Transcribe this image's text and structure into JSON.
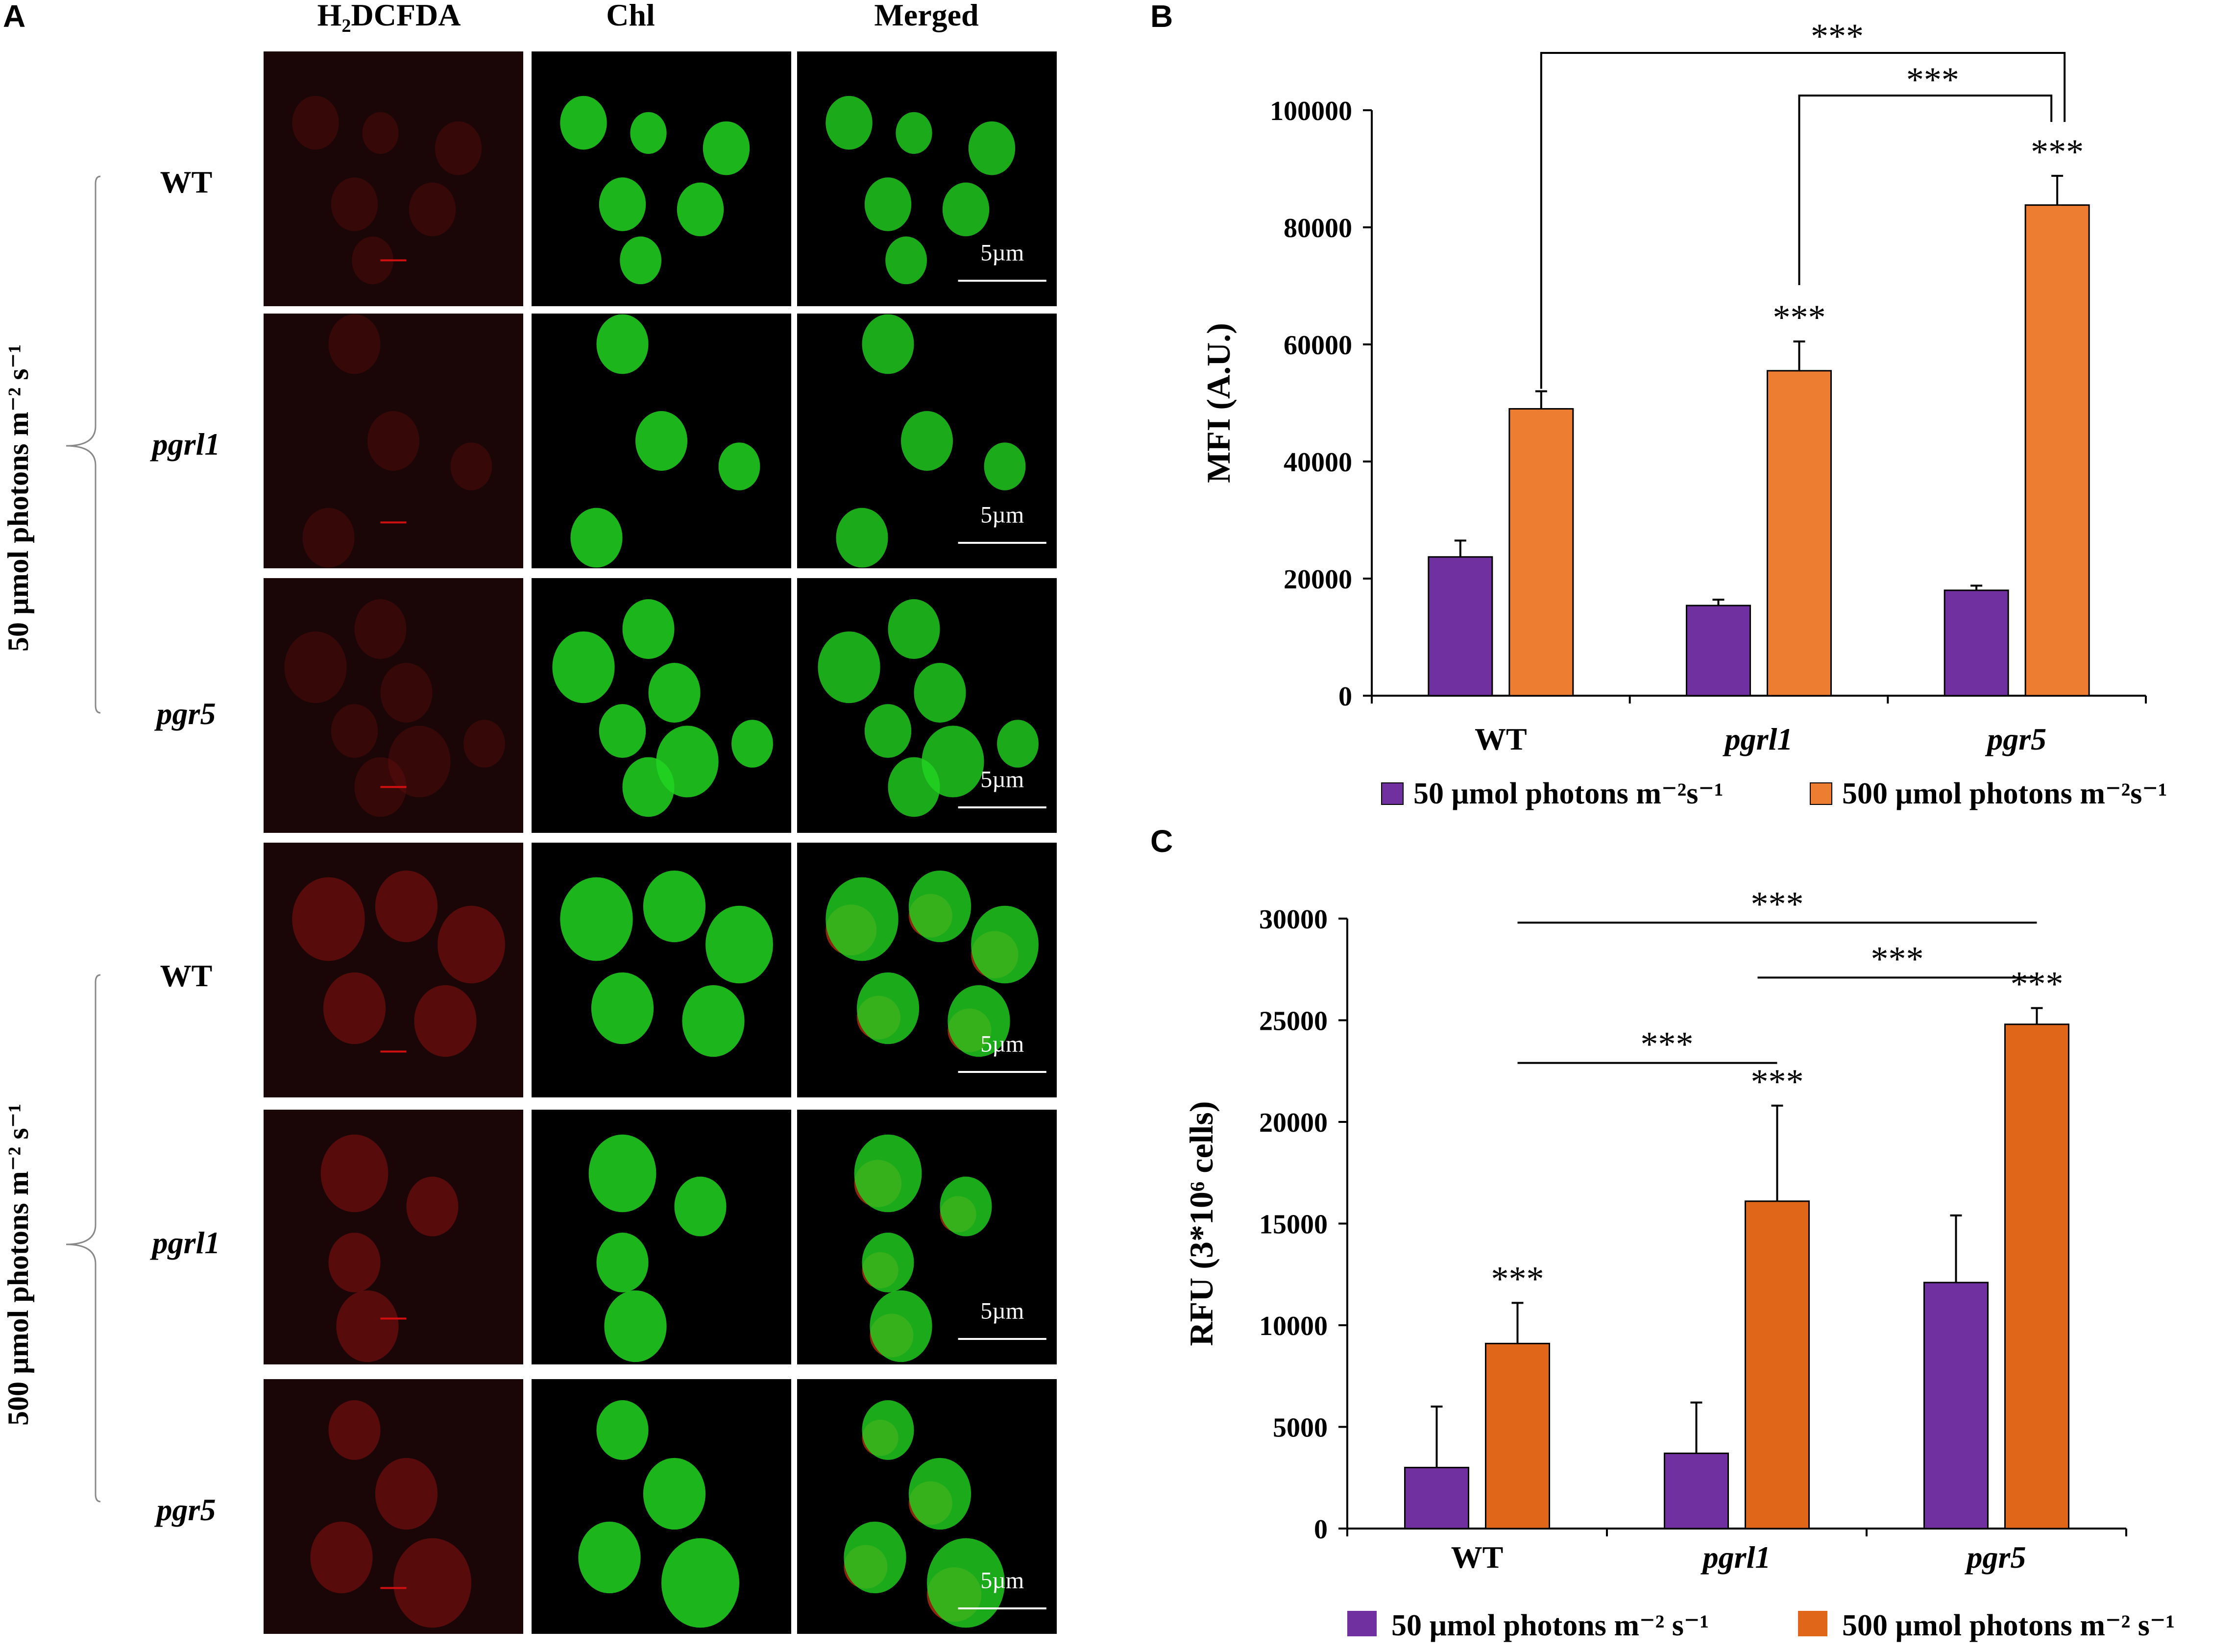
{
  "panels": {
    "a": {
      "letter": "A",
      "columns": [
        "H₂DCFDA",
        "Chl",
        "Merged"
      ],
      "groups": [
        {
          "condition": "50 µmol photons m⁻² s⁻¹",
          "rows": [
            "WT",
            "pgrl1",
            "pgr5"
          ]
        },
        {
          "condition": "500 µmol photons m⁻² s⁻¹",
          "rows": [
            "WT",
            "pgrl1",
            "pgr5"
          ]
        }
      ],
      "scale_bar": "5µm",
      "colors": {
        "h2dcfda": "#8b1010",
        "chl": "#21d521",
        "background": "#000000"
      }
    },
    "b": {
      "letter": "B"
    },
    "c": {
      "letter": "C"
    }
  },
  "chart_data": [
    {
      "panel": "B",
      "type": "bar",
      "categories": [
        "WT",
        "pgrl1",
        "pgr5"
      ],
      "ylabel": "MFI (A.U.)",
      "ylim": [
        0,
        100000
      ],
      "yticks": [
        0,
        20000,
        40000,
        60000,
        80000,
        100000
      ],
      "series": [
        {
          "name": "50 µmol photons m⁻²s⁻¹",
          "color": "#7030a0",
          "values": [
            23700,
            15400,
            18000
          ],
          "errors": [
            2800,
            1000,
            800
          ]
        },
        {
          "name": "500 µmol photons m⁻²s⁻¹",
          "color": "#ed7d31",
          "values": [
            49000,
            55500,
            83800
          ],
          "errors": [
            3000,
            5000,
            5000
          ]
        }
      ],
      "bar_annotations": [
        {
          "series": 1,
          "category": 1,
          "text": "***"
        },
        {
          "series": 1,
          "category": 2,
          "text": "***"
        }
      ],
      "brackets": [
        {
          "from": 0,
          "to": 2,
          "text": "***"
        },
        {
          "from": 1,
          "to": 2,
          "text": "***"
        }
      ],
      "legend": "bottom"
    },
    {
      "panel": "C",
      "type": "bar",
      "categories": [
        "WT",
        "pgrl1",
        "pgr5"
      ],
      "ylabel": "RFU (3*10⁶ cells)",
      "ylim": [
        0,
        30000
      ],
      "yticks": [
        0,
        5000,
        10000,
        15000,
        20000,
        25000,
        30000
      ],
      "series": [
        {
          "name": "50 µmol photons m⁻² s⁻¹",
          "color": "#7030a0",
          "values": [
            3000,
            3700,
            12100
          ],
          "errors": [
            3000,
            2500,
            3300
          ]
        },
        {
          "name": "500 µmol photons m⁻² s⁻¹",
          "color": "#e0661a",
          "values": [
            9100,
            16100,
            24800
          ],
          "errors": [
            2000,
            4700,
            800
          ]
        }
      ],
      "bar_annotations": [
        {
          "series": 1,
          "category": 0,
          "text": "***"
        },
        {
          "series": 1,
          "category": 1,
          "text": "***"
        },
        {
          "series": 1,
          "category": 2,
          "text": "***"
        }
      ],
      "lines": [
        {
          "from": 0,
          "to": 2,
          "y": 29800,
          "text": "***"
        },
        {
          "from": 1,
          "to": 2,
          "y": 27100,
          "text": "***"
        },
        {
          "from": 0,
          "to": 1,
          "y": 22900,
          "text": "***"
        }
      ],
      "legend": "bottom"
    }
  ]
}
